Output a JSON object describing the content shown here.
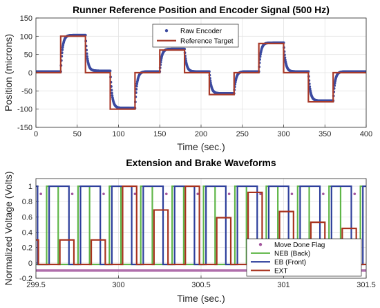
{
  "chart_data": [
    {
      "type": "line",
      "title": "Runner Reference Position and Encoder Signal (500 Hz)",
      "xlabel": "Time (sec.)",
      "ylabel": "Position (microns)",
      "xlim": [
        0,
        400
      ],
      "ylim": [
        -150,
        150
      ],
      "xticks": [
        "0",
        "50",
        "100",
        "150",
        "200",
        "250",
        "300",
        "350",
        "400"
      ],
      "yticks": [
        "150",
        "100",
        "50",
        "0",
        "-50",
        "-100",
        "-150"
      ],
      "grid": true,
      "legend_position": "top-center",
      "series": [
        {
          "name": "Raw Encoder",
          "style": "dots",
          "color": "#3b4aa0",
          "tau": 2.2,
          "steps": [
            [
              0,
              3
            ],
            [
              30,
              103
            ],
            [
              60,
              5
            ],
            [
              90,
              -97
            ],
            [
              120,
              3
            ],
            [
              150,
              65
            ],
            [
              180,
              3
            ],
            [
              210,
              -57
            ],
            [
              240,
              3
            ],
            [
              270,
              82
            ],
            [
              300,
              3
            ],
            [
              330,
              -77
            ],
            [
              360,
              3
            ],
            [
              400,
              3
            ]
          ]
        },
        {
          "name": "Reference Target",
          "style": "step",
          "color": "#a83a2a",
          "x": [
            0,
            30,
            30,
            60,
            60,
            90,
            90,
            120,
            120,
            150,
            150,
            180,
            180,
            210,
            210,
            240,
            240,
            270,
            270,
            300,
            300,
            330,
            330,
            360,
            360,
            400
          ],
          "y": [
            0,
            0,
            100,
            100,
            0,
            0,
            -100,
            -100,
            0,
            0,
            62,
            62,
            0,
            0,
            -60,
            -60,
            0,
            0,
            80,
            80,
            0,
            0,
            -80,
            -80,
            0,
            0
          ]
        }
      ]
    },
    {
      "type": "line",
      "title": "Extension and Brake Waveforms",
      "xlabel": "Time (sec.)",
      "ylabel": "Normalized Voltage (Volts)",
      "xlim": [
        299.5,
        301.5
      ],
      "ylim": [
        -0.2,
        1.1
      ],
      "xticks": [
        "299.5",
        "300",
        "300.5",
        "301",
        "301.5"
      ],
      "yticks": [
        "1",
        "0.8",
        "0.6",
        "0.4",
        "0.2",
        "0",
        "-0.2"
      ],
      "grid": true,
      "legend_position": "bottom-right",
      "series": [
        {
          "name": "Move Done Flag",
          "style": "dots",
          "color": "#a2559d",
          "x": [
            299.53,
            299.72,
            299.91,
            300.1,
            300.29,
            300.48,
            300.67,
            300.86,
            301.05,
            301.24,
            301.43
          ],
          "y": [
            0.9,
            0.9,
            0.9,
            0.9,
            0.9,
            0.9,
            0.9,
            0.9,
            0.9,
            0.9,
            0.9
          ],
          "baseline": -0.1
        },
        {
          "name": "NEB (Back)",
          "style": "step",
          "color": "#5fb648",
          "x": [
            299.5,
            299.565,
            299.565,
            299.635,
            299.635,
            299.755,
            299.755,
            299.825,
            299.825,
            299.945,
            299.945,
            300.015,
            300.015,
            300.135,
            300.135,
            300.205,
            300.205,
            300.325,
            300.325,
            300.395,
            300.395,
            300.515,
            300.515,
            300.585,
            300.585,
            300.705,
            300.705,
            300.775,
            300.775,
            300.895,
            300.895,
            300.965,
            300.965,
            301.085,
            301.085,
            301.155,
            301.155,
            301.275,
            301.275,
            301.345,
            301.345,
            301.465,
            301.465,
            301.5
          ],
          "y": [
            -0.02,
            -0.02,
            1,
            1,
            -0.02,
            -0.02,
            1,
            1,
            -0.02,
            -0.02,
            1,
            1,
            -0.02,
            -0.02,
            1,
            1,
            -0.02,
            -0.02,
            1,
            1,
            -0.02,
            -0.02,
            1,
            1,
            -0.02,
            -0.02,
            1,
            1,
            -0.02,
            -0.02,
            1,
            1,
            -0.02,
            -0.02,
            1,
            1,
            -0.02,
            -0.02,
            1,
            1,
            -0.02,
            -0.02,
            1,
            1
          ]
        },
        {
          "name": "EB (Front)",
          "style": "step",
          "color": "#2e3f9c",
          "x": [
            299.5,
            299.51,
            299.51,
            299.58,
            299.58,
            299.7,
            299.7,
            299.77,
            299.77,
            299.89,
            299.89,
            299.96,
            299.96,
            300.08,
            300.08,
            300.15,
            300.15,
            300.27,
            300.27,
            300.34,
            300.34,
            300.46,
            300.46,
            300.53,
            300.53,
            300.65,
            300.65,
            300.72,
            300.72,
            300.84,
            300.84,
            300.91,
            300.91,
            301.03,
            301.03,
            301.1,
            301.1,
            301.22,
            301.22,
            301.29,
            301.29,
            301.41,
            301.41,
            301.48,
            301.48,
            301.5
          ],
          "y": [
            1,
            1,
            -0.02,
            -0.02,
            1,
            1,
            -0.02,
            -0.02,
            1,
            1,
            -0.02,
            -0.02,
            1,
            1,
            -0.02,
            -0.02,
            1,
            1,
            -0.02,
            -0.02,
            1,
            1,
            -0.02,
            -0.02,
            1,
            1,
            -0.02,
            -0.02,
            1,
            1,
            -0.02,
            -0.02,
            1,
            1,
            -0.02,
            -0.02,
            1,
            1,
            -0.02,
            -0.02,
            1,
            1,
            -0.02,
            -0.02,
            1,
            1
          ]
        },
        {
          "name": "EXT",
          "style": "step",
          "color": "#a8321e",
          "x": [
            299.5,
            299.515,
            299.515,
            299.645,
            299.645,
            299.73,
            299.73,
            299.835,
            299.835,
            299.92,
            299.92,
            300.025,
            300.025,
            300.11,
            300.11,
            300.215,
            300.215,
            300.3,
            300.3,
            300.405,
            300.405,
            300.49,
            300.49,
            300.595,
            300.595,
            300.68,
            300.68,
            300.785,
            300.785,
            300.87,
            300.87,
            300.975,
            300.975,
            301.06,
            301.06,
            301.165,
            301.165,
            301.25,
            301.25,
            301.355,
            301.355,
            301.44,
            301.44,
            301.5
          ],
          "y": [
            0.3,
            0.3,
            -0.02,
            -0.02,
            0.3,
            0.3,
            -0.02,
            -0.02,
            0.3,
            0.3,
            -0.02,
            -0.02,
            1,
            1,
            -0.02,
            -0.02,
            0.69,
            0.69,
            -0.02,
            -0.02,
            1,
            1,
            -0.02,
            -0.02,
            0.59,
            0.59,
            -0.02,
            -0.02,
            0.92,
            0.92,
            -0.02,
            -0.02,
            0.67,
            0.67,
            -0.02,
            -0.02,
            0.53,
            0.53,
            -0.02,
            -0.02,
            0.45,
            0.45,
            -0.02,
            -0.02
          ]
        }
      ]
    }
  ]
}
